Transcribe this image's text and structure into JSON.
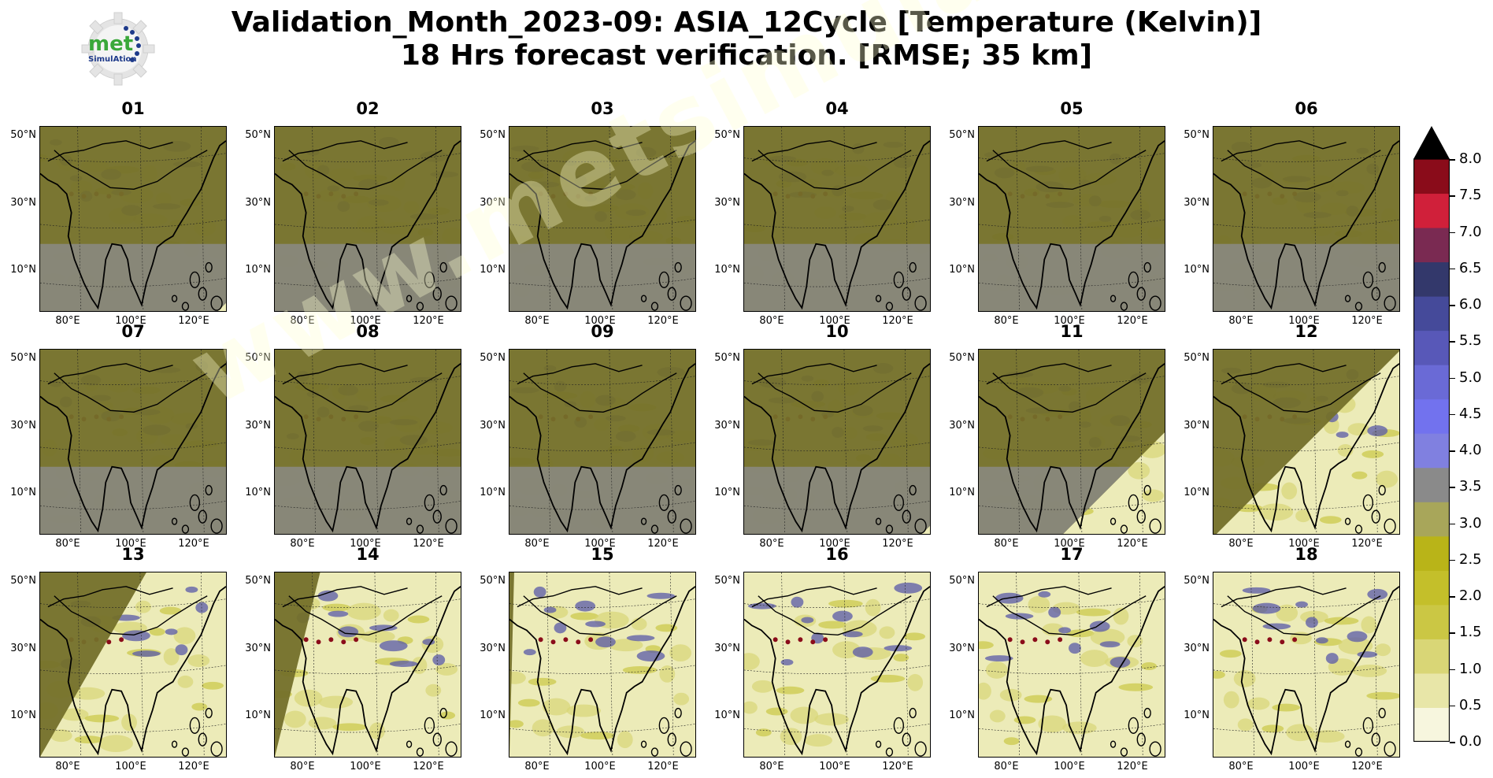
{
  "title": {
    "line1": "Validation_Month_2023-09: ASIA_12Cycle [Temperature (Kelvin)]",
    "line2": "18 Hrs forecast verification.  [RMSE; 35 km]"
  },
  "logo": {
    "text_main": "met",
    "text_sub": "SimulAtion"
  },
  "watermark": "www.metsimulation.com",
  "axes": {
    "lat_labels": [
      "50°N",
      "30°N",
      "10°N"
    ],
    "lon_labels": [
      "80°E",
      "100°E",
      "120°E"
    ]
  },
  "panels": [
    {
      "label": "01",
      "coverage": 0.02
    },
    {
      "label": "02",
      "coverage": 0.0
    },
    {
      "label": "03",
      "coverage": 0.0
    },
    {
      "label": "04",
      "coverage": 0.0
    },
    {
      "label": "05",
      "coverage": 0.0
    },
    {
      "label": "06",
      "coverage": 0.0
    },
    {
      "label": "07",
      "coverage": 0.0
    },
    {
      "label": "08",
      "coverage": 0.0
    },
    {
      "label": "09",
      "coverage": 0.0
    },
    {
      "label": "10",
      "coverage": 0.02
    },
    {
      "label": "11",
      "coverage": 0.25
    },
    {
      "label": "12",
      "coverage": 0.45
    },
    {
      "label": "13",
      "coverage": 0.65
    },
    {
      "label": "14",
      "coverage": 0.8
    },
    {
      "label": "15",
      "coverage": 0.9
    },
    {
      "label": "16",
      "coverage": 0.95
    },
    {
      "label": "17",
      "coverage": 1.0
    },
    {
      "label": "18",
      "coverage": 1.0
    }
  ],
  "colorbar": {
    "ticks": [
      "0.0",
      "0.5",
      "1.0",
      "1.5",
      "2.0",
      "2.5",
      "3.0",
      "3.5",
      "4.0",
      "4.5",
      "5.0",
      "5.5",
      "6.0",
      "6.5",
      "7.0",
      "7.5",
      "8.0"
    ],
    "colors": [
      "#f7f6de",
      "#e8e6a8",
      "#d9d676",
      "#cbc744",
      "#c4bf2a",
      "#b9b418",
      "#a8a65a",
      "#8a8a8a",
      "#8080e0",
      "#7272ee",
      "#6a6ad6",
      "#5858b8",
      "#454a9a",
      "#33386b",
      "#7a2a52",
      "#d0203a",
      "#8a0c1a"
    ],
    "extend_color": "#000000"
  },
  "colors": {
    "shadow_olive": "#74702a",
    "ocean_gray": "#8a8a80",
    "light_fill": "#ecebb8",
    "blue_patch": "#5a5aa8"
  }
}
